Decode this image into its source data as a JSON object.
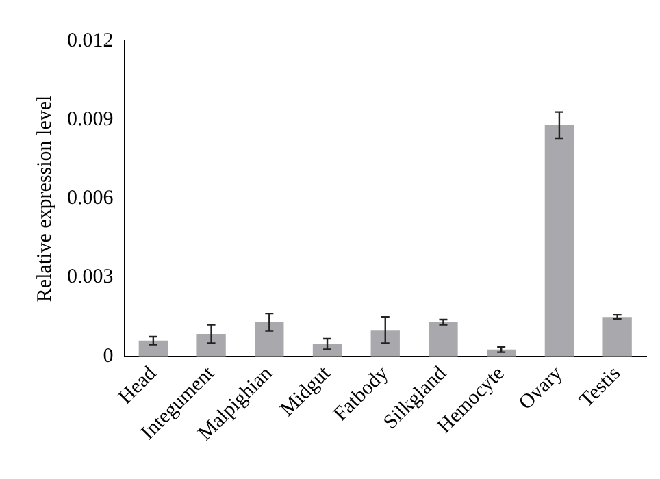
{
  "chart_data": {
    "type": "bar",
    "ylabel": "Relative expression level",
    "categories": [
      "Head",
      "Integument",
      "Malpighian",
      "Midgut",
      "Fatbody",
      "Silkgland",
      "Hemocyte",
      "Ovary",
      "Testis"
    ],
    "values": [
      0.0006,
      0.00085,
      0.0013,
      0.00047,
      0.001,
      0.0013,
      0.00026,
      0.0088,
      0.0015
    ],
    "errors": [
      0.00015,
      0.00035,
      0.00033,
      0.0002,
      0.0005,
      0.0001,
      0.0001,
      0.0005,
      8e-05
    ],
    "color": "#a9a8ad",
    "ylim": [
      0,
      0.012
    ],
    "yticks": [
      0,
      0.003,
      0.006,
      0.009,
      0.012
    ],
    "grid": false,
    "legend": false
  }
}
